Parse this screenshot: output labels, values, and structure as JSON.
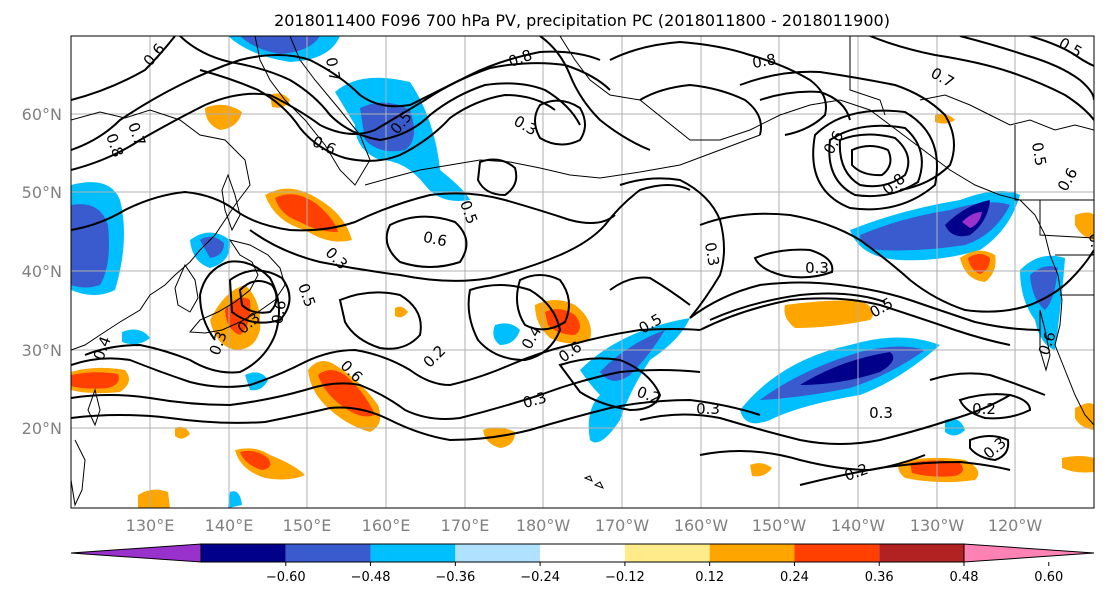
{
  "title": "2018011400 F096 700 hPa PV, precipitation PC (2018011800 - 2018011900)",
  "lat_labels": [
    "60°N",
    "50°N",
    "40°N",
    "30°N",
    "20°N"
  ],
  "lon_labels": [
    "130°E",
    "140°E",
    "150°E",
    "160°E",
    "170°E",
    "180°W",
    "170°W",
    "160°W",
    "150°W",
    "140°W",
    "130°W",
    "120°W"
  ],
  "colorbar": {
    "colors": [
      "#9932cc",
      "#00008b",
      "#3a5bcd",
      "#00bfff",
      "#b0e2ff",
      "#ffffff",
      "#ffeb8a",
      "#ffa500",
      "#ff4000",
      "#b22222",
      "#ff82b4"
    ],
    "tick_labels": [
      "−0.60",
      "−0.48",
      "−0.36",
      "−0.24",
      "−0.12",
      "0.12",
      "0.24",
      "0.36",
      "0.48",
      "0.60"
    ]
  },
  "contour_labels": [
    "0.6",
    "0.7",
    "0.8",
    "0.6",
    "0.7",
    "0.8",
    "0.3",
    "0.5",
    "0.6",
    "0.3",
    "0.4",
    "0.3",
    "0.5",
    "0.6",
    "0.3",
    "0.2",
    "0.6",
    "0.4",
    "0.6",
    "0.5",
    "0.2",
    "0.3",
    "0.3",
    "0.8",
    "0.7",
    "0.6",
    "0.8",
    "0.5",
    "0.6",
    "0.3",
    "0.5",
    "0.3",
    "0.2",
    "0.3",
    "0.2",
    "0.3",
    "0.5",
    "0.4",
    "0.6",
    "0.5"
  ]
}
